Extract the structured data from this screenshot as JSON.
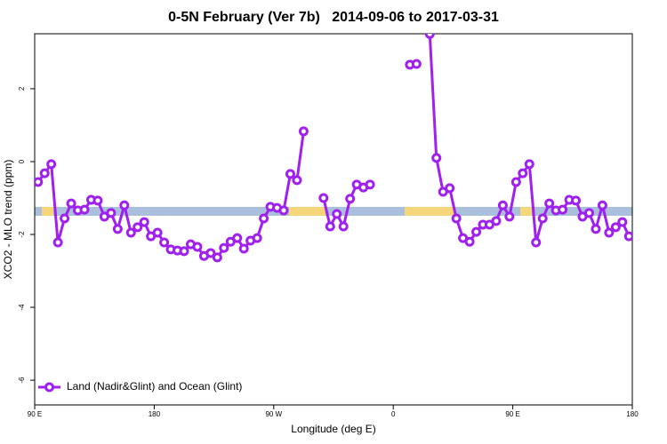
{
  "chart_data": {
    "type": "line",
    "title": "0-5N February (Ver 7b)   2014-09-06 to 2017-03-31",
    "x_label": "Longitude (deg E)",
    "y_label": "XCO2 - MLO trend (ppm)",
    "x": [
      92.5,
      97.5,
      102.5,
      107.5,
      112.5,
      117.5,
      122.5,
      127.5,
      132.5,
      137.5,
      142.5,
      147.5,
      152.5,
      157.5,
      162.5,
      167.5,
      172.5,
      177.5,
      182.5,
      187.5,
      192.5,
      197.5,
      202.5,
      207.5,
      212.5,
      217.5,
      222.5,
      227.5,
      232.5,
      237.5,
      242.5,
      247.5,
      252.5,
      257.5,
      262.5,
      267.5,
      272.5,
      277.5,
      282.5,
      287.5,
      292.5,
      297.5,
      302.5,
      307.5,
      312.5,
      317.5,
      322.5,
      327.5,
      332.5,
      337.5,
      342.5,
      347.5,
      352.5,
      357.5,
      362.5,
      367.5,
      372.5,
      377.5,
      382.5,
      387.5,
      392.5,
      397.5,
      402.5,
      407.5,
      412.5,
      417.5,
      422.5,
      427.5,
      432.5,
      437.5,
      442.5,
      447.5,
      452.5,
      457.5,
      462.5,
      467.5,
      472.5,
      477.5,
      482.5,
      487.5,
      492.5,
      497.5,
      502.5,
      507.5,
      512.5,
      517.5,
      522.5,
      527.5,
      532.5,
      537.5
    ],
    "series": [
      {
        "name": "Land (Nadir&Glint) and Ocean (Glint)",
        "color": "#a020f0",
        "values": [
          -0.56,
          -0.32,
          -0.07,
          -2.22,
          -1.56,
          -1.15,
          -1.34,
          -1.32,
          -1.05,
          -1.07,
          -1.51,
          -1.41,
          -1.85,
          -1.2,
          -1.95,
          -1.8,
          -1.66,
          -2.05,
          -1.95,
          -2.22,
          -2.41,
          -2.44,
          -2.46,
          -2.27,
          -2.34,
          -2.59,
          -2.51,
          -2.63,
          -2.37,
          -2.2,
          -2.1,
          -2.39,
          -2.17,
          -2.1,
          -1.56,
          -1.24,
          -1.27,
          -1.34,
          -0.34,
          -0.51,
          0.83,
          null,
          null,
          -1.0,
          -1.78,
          -1.44,
          -1.78,
          -1.02,
          -0.63,
          -0.71,
          -0.63,
          null,
          null,
          null,
          null,
          null,
          2.66,
          2.68,
          null,
          3.5,
          0.1,
          -0.83,
          -0.73,
          -1.56,
          -2.1,
          -2.2,
          -1.93,
          -1.73,
          -1.73,
          -1.63,
          -1.2,
          -1.51,
          -0.56,
          -0.32,
          -0.07,
          -2.22,
          -1.56,
          -1.15,
          -1.34,
          -1.32,
          -1.05,
          -1.07,
          -1.51,
          -1.41,
          -1.85,
          -1.2,
          -1.95,
          -1.8,
          -1.66,
          -2.05
        ]
      }
    ],
    "xlim": [
      90,
      540
    ],
    "xticks": [
      {
        "value": 90,
        "label": "90 E"
      },
      180,
      {
        "value": 270,
        "label": "90 W"
      },
      {
        "value": 360,
        "label": "0"
      },
      {
        "value": 450,
        "label": "90 E"
      },
      {
        "value": 540,
        "label": "180"
      }
    ],
    "ylim": [
      -6.68,
      3.51
    ],
    "yticks": [
      2,
      0,
      -2,
      -4,
      -6
    ],
    "legend": "bottom-left"
  }
}
